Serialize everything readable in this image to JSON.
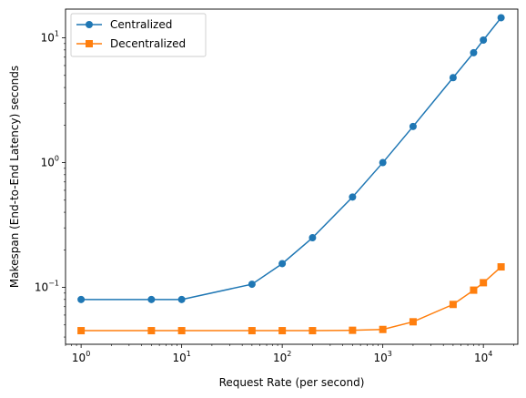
{
  "chart_data": {
    "type": "line",
    "xscale": "log",
    "yscale": "log",
    "xlim": [
      0.7,
      22000
    ],
    "ylim": [
      0.035,
      17
    ],
    "xlabel": "Request Rate (per second)",
    "ylabel": "Makespan (End-to-End Latency) seconds",
    "x_ticks": [
      {
        "value": 1,
        "base": "10",
        "exp": "0"
      },
      {
        "value": 10,
        "base": "10",
        "exp": "1"
      },
      {
        "value": 100,
        "base": "10",
        "exp": "2"
      },
      {
        "value": 1000,
        "base": "10",
        "exp": "3"
      },
      {
        "value": 10000,
        "base": "10",
        "exp": "4"
      }
    ],
    "y_ticks": [
      {
        "value": 0.1,
        "base": "10",
        "exp": "−1"
      },
      {
        "value": 1,
        "base": "10",
        "exp": "0"
      },
      {
        "value": 10,
        "base": "10",
        "exp": "1"
      }
    ],
    "grid": false,
    "legend": "top-left",
    "series": [
      {
        "name": "Centralized",
        "color": "#1f77b4",
        "marker": "circle",
        "x": [
          1,
          5,
          10,
          50,
          100,
          200,
          500,
          1000,
          2000,
          5000,
          8000,
          10000,
          15000
        ],
        "y": [
          0.08,
          0.08,
          0.08,
          0.106,
          0.155,
          0.25,
          0.53,
          1.0,
          1.95,
          4.8,
          7.6,
          9.6,
          14.5
        ]
      },
      {
        "name": "Decentralized",
        "color": "#ff7f0e",
        "marker": "square",
        "x": [
          1,
          5,
          10,
          50,
          100,
          200,
          500,
          1000,
          2000,
          5000,
          8000,
          10000,
          15000
        ],
        "y": [
          0.045,
          0.045,
          0.045,
          0.045,
          0.045,
          0.045,
          0.0453,
          0.046,
          0.053,
          0.073,
          0.095,
          0.109,
          0.146
        ]
      }
    ]
  }
}
